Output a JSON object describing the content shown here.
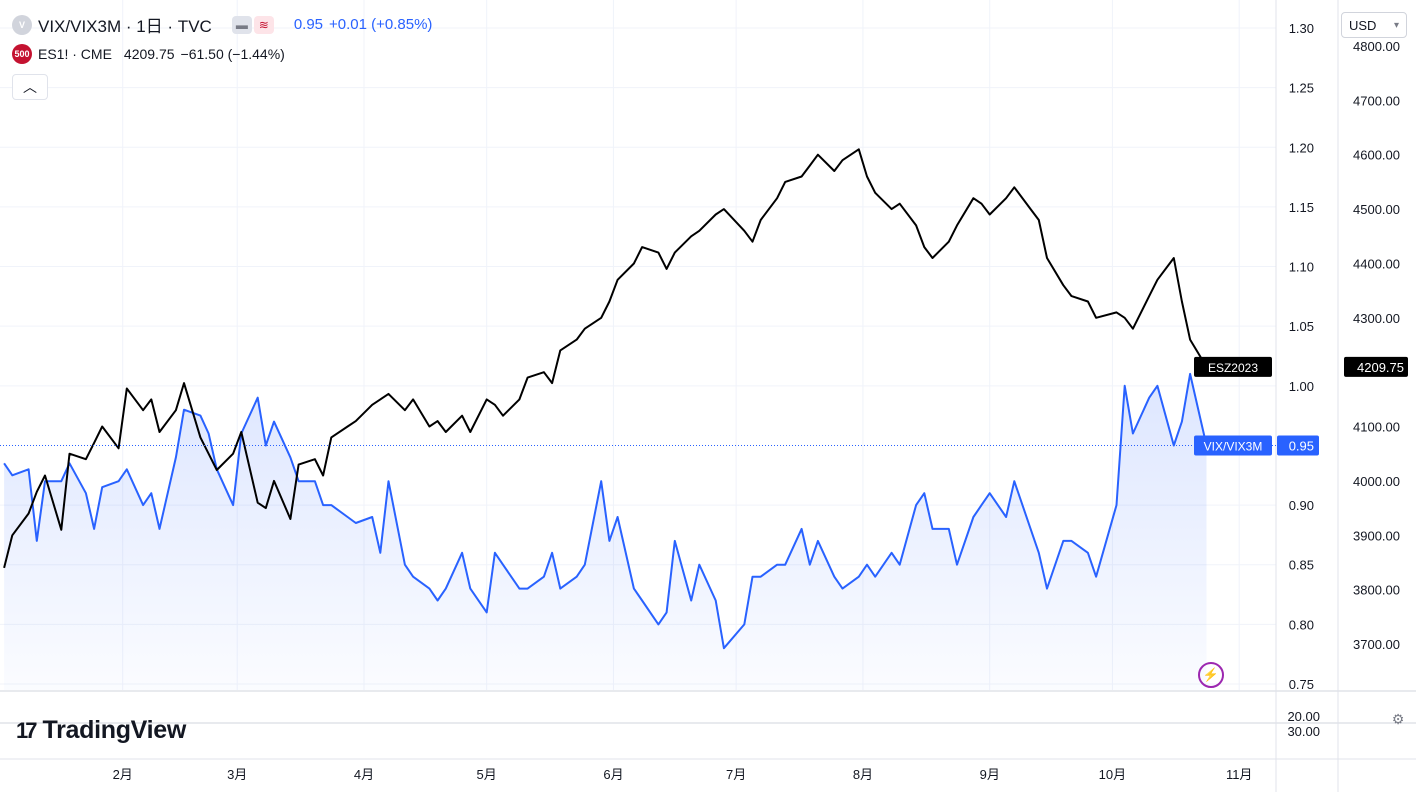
{
  "legend": {
    "main": {
      "symbol_icon": "V",
      "title": "VIX/VIX3M · 1日 · TVC",
      "value": "0.95",
      "change": "+0.01 (+0.85%)",
      "color": "#2962ff"
    },
    "compare": {
      "symbol_icon": "500",
      "title": "ES1! · CME",
      "value": "4209.75",
      "change": "−61.50 (−1.44%)",
      "color": "#c41230"
    },
    "collapse_icon": "chevron-up-icon",
    "pill_icons": [
      "minus-icon",
      "wave-icon"
    ]
  },
  "currency": {
    "selected": "USD"
  },
  "brand": {
    "name": "TradingView",
    "mark": "17"
  },
  "chart_data": {
    "type": "line",
    "x": [
      "2023-01-03",
      "2023-01-05",
      "2023-01-09",
      "2023-01-11",
      "2023-01-13",
      "2023-01-17",
      "2023-01-19",
      "2023-01-23",
      "2023-01-25",
      "2023-01-27",
      "2023-01-31",
      "2023-02-02",
      "2023-02-06",
      "2023-02-08",
      "2023-02-10",
      "2023-02-14",
      "2023-02-16",
      "2023-02-20",
      "2023-02-22",
      "2023-02-24",
      "2023-02-28",
      "2023-03-02",
      "2023-03-06",
      "2023-03-08",
      "2023-03-10",
      "2023-03-14",
      "2023-03-16",
      "2023-03-20",
      "2023-03-22",
      "2023-03-24",
      "2023-03-28",
      "2023-03-30",
      "2023-04-03",
      "2023-04-05",
      "2023-04-07",
      "2023-04-11",
      "2023-04-13",
      "2023-04-17",
      "2023-04-19",
      "2023-04-21",
      "2023-04-25",
      "2023-04-27",
      "2023-05-01",
      "2023-05-03",
      "2023-05-05",
      "2023-05-09",
      "2023-05-11",
      "2023-05-15",
      "2023-05-17",
      "2023-05-19",
      "2023-05-23",
      "2023-05-25",
      "2023-05-29",
      "2023-05-31",
      "2023-06-02",
      "2023-06-06",
      "2023-06-08",
      "2023-06-12",
      "2023-06-14",
      "2023-06-16",
      "2023-06-20",
      "2023-06-22",
      "2023-06-26",
      "2023-06-28",
      "2023-07-03",
      "2023-07-05",
      "2023-07-07",
      "2023-07-11",
      "2023-07-13",
      "2023-07-17",
      "2023-07-19",
      "2023-07-21",
      "2023-07-25",
      "2023-07-27",
      "2023-07-31",
      "2023-08-02",
      "2023-08-04",
      "2023-08-08",
      "2023-08-10",
      "2023-08-14",
      "2023-08-16",
      "2023-08-18",
      "2023-08-22",
      "2023-08-24",
      "2023-08-28",
      "2023-08-30",
      "2023-09-01",
      "2023-09-05",
      "2023-09-07",
      "2023-09-11",
      "2023-09-13",
      "2023-09-15",
      "2023-09-19",
      "2023-09-21",
      "2023-09-25",
      "2023-09-27",
      "2023-10-02",
      "2023-10-04",
      "2023-10-06",
      "2023-10-10",
      "2023-10-12",
      "2023-10-16",
      "2023-10-18",
      "2023-10-20",
      "2023-10-24"
    ],
    "x_tick_labels": [
      {
        "label": "2月",
        "date": "2023-02-01"
      },
      {
        "label": "3月",
        "date": "2023-03-01"
      },
      {
        "label": "4月",
        "date": "2023-04-01"
      },
      {
        "label": "5月",
        "date": "2023-05-01"
      },
      {
        "label": "6月",
        "date": "2023-06-01"
      },
      {
        "label": "7月",
        "date": "2023-07-01"
      },
      {
        "label": "8月",
        "date": "2023-08-01"
      },
      {
        "label": "9月",
        "date": "2023-09-01"
      },
      {
        "label": "10月",
        "date": "2023-10-01"
      },
      {
        "label": "11月",
        "date": "2023-11-01"
      }
    ],
    "xlim": [
      "2023-01-02",
      "2023-11-10"
    ],
    "series": [
      {
        "name": "VIX/VIX3M",
        "axis": "ratio",
        "color": "#2962ff",
        "area_fill": true,
        "last_label": "0.95",
        "values": [
          0.935,
          0.925,
          0.93,
          0.87,
          0.92,
          0.92,
          0.935,
          0.91,
          0.88,
          0.915,
          0.92,
          0.93,
          0.9,
          0.91,
          0.88,
          0.94,
          0.98,
          0.975,
          0.96,
          0.93,
          0.9,
          0.96,
          0.99,
          0.95,
          0.97,
          0.94,
          0.92,
          0.92,
          0.9,
          0.9,
          0.89,
          0.885,
          0.89,
          0.86,
          0.92,
          0.85,
          0.84,
          0.83,
          0.82,
          0.83,
          0.86,
          0.83,
          0.81,
          0.86,
          0.85,
          0.83,
          0.83,
          0.84,
          0.86,
          0.83,
          0.84,
          0.85,
          0.92,
          0.87,
          0.89,
          0.83,
          0.82,
          0.8,
          0.81,
          0.87,
          0.82,
          0.85,
          0.82,
          0.78,
          0.8,
          0.84,
          0.84,
          0.85,
          0.85,
          0.88,
          0.85,
          0.87,
          0.84,
          0.83,
          0.84,
          0.85,
          0.84,
          0.86,
          0.85,
          0.9,
          0.91,
          0.88,
          0.88,
          0.85,
          0.89,
          0.9,
          0.91,
          0.89,
          0.92,
          0.88,
          0.86,
          0.83,
          0.87,
          0.87,
          0.86,
          0.84,
          0.9,
          1.0,
          0.96,
          0.99,
          1.0,
          0.95,
          0.97,
          1.01,
          0.95
        ],
        "annotations": []
      },
      {
        "name": "ESZ2023",
        "axis": "price",
        "color": "#000000",
        "last_label": "4209.75",
        "values": [
          3840,
          3900,
          3940,
          3980,
          4010,
          3910,
          4050,
          4040,
          4070,
          4100,
          4060,
          4170,
          4130,
          4150,
          4090,
          4130,
          4180,
          4080,
          4050,
          4020,
          4050,
          4090,
          3960,
          3950,
          4000,
          3930,
          4030,
          4040,
          4010,
          4080,
          4100,
          4110,
          4140,
          4150,
          4160,
          4130,
          4150,
          4100,
          4110,
          4090,
          4120,
          4090,
          4150,
          4140,
          4120,
          4150,
          4190,
          4200,
          4180,
          4240,
          4260,
          4280,
          4300,
          4330,
          4370,
          4400,
          4430,
          4420,
          4390,
          4420,
          4450,
          4460,
          4490,
          4500,
          4460,
          4440,
          4480,
          4520,
          4550,
          4560,
          4580,
          4600,
          4570,
          4590,
          4610,
          4560,
          4530,
          4500,
          4510,
          4470,
          4430,
          4410,
          4440,
          4470,
          4520,
          4510,
          4490,
          4520,
          4540,
          4500,
          4480,
          4410,
          4360,
          4340,
          4330,
          4300,
          4310,
          4300,
          4280,
          4340,
          4370,
          4410,
          4330,
          4260,
          4209.75
        ],
        "annotations": []
      }
    ],
    "yaxis_ratio": {
      "ticks": [
        "1.30",
        "1.25",
        "1.20",
        "1.15",
        "1.10",
        "1.05",
        "1.00",
        "0.90",
        "0.85",
        "0.80",
        "0.75"
      ],
      "ylim": [
        0.75,
        1.3
      ]
    },
    "yaxis_price": {
      "ticks": [
        "4800.00",
        "4700.00",
        "4600.00",
        "4500.00",
        "4400.00",
        "4300.00",
        "4100.00",
        "4000.00",
        "3900.00",
        "3800.00",
        "3700.00"
      ],
      "ylim": [
        3630,
        4830
      ]
    },
    "lower_pane": {
      "ticks": [
        "20.00",
        "30.00"
      ]
    },
    "grid": true
  }
}
